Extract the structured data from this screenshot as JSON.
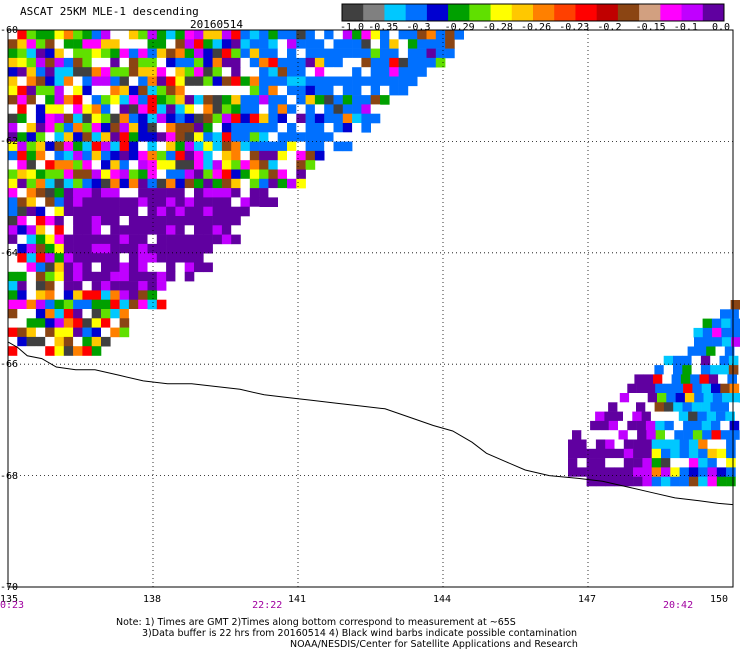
{
  "header": {
    "product": "ASCAT 25KM MLE-1 descending",
    "date": "20160514"
  },
  "legend": {
    "colors": [
      "#404040",
      "#808080",
      "#00c8ff",
      "#0070ff",
      "#0000d0",
      "#00a000",
      "#60e000",
      "#ffff00",
      "#ffc800",
      "#ff8000",
      "#ff4000",
      "#ff0000",
      "#c00000",
      "#8b4513",
      "#d2a080",
      "#ff00ff",
      "#c000ff",
      "#6000a0"
    ],
    "labels": [
      "-1.0",
      "-0.35",
      "-0.3",
      "-0.29",
      "-0.28",
      "-0.26",
      "-0.23",
      "-0.2",
      "-0.15",
      "-0.1",
      "0.0"
    ]
  },
  "chart_data": {
    "type": "heatmap",
    "title": "ASCAT 25KM MLE-1 descending",
    "subtitle": "20160514",
    "xlim": [
      135,
      150
    ],
    "ylim": [
      -70,
      -60
    ],
    "x_ticks": [
      "135",
      "138",
      "141",
      "144",
      "147",
      "150"
    ],
    "y_ticks": [
      "-60",
      "-62",
      "-64",
      "-66",
      "-68",
      "-70"
    ],
    "time_labels": [
      {
        "text": "0:23",
        "lon": 135
      },
      {
        "text": "22:22",
        "lon": 140.3
      },
      {
        "text": "20:42",
        "lon": 148.8
      }
    ],
    "grid": true
  },
  "notes": {
    "line1": "Note: 1) Times are GMT 2)Times along bottom correspond to measurement at ~65S",
    "line2": "3)Data buffer is 22 hrs from 20160514 4) Black wind barbs indicate possible contamination",
    "line3": "NOAA/NESDIS/Center for Satellite Applications and Research"
  }
}
